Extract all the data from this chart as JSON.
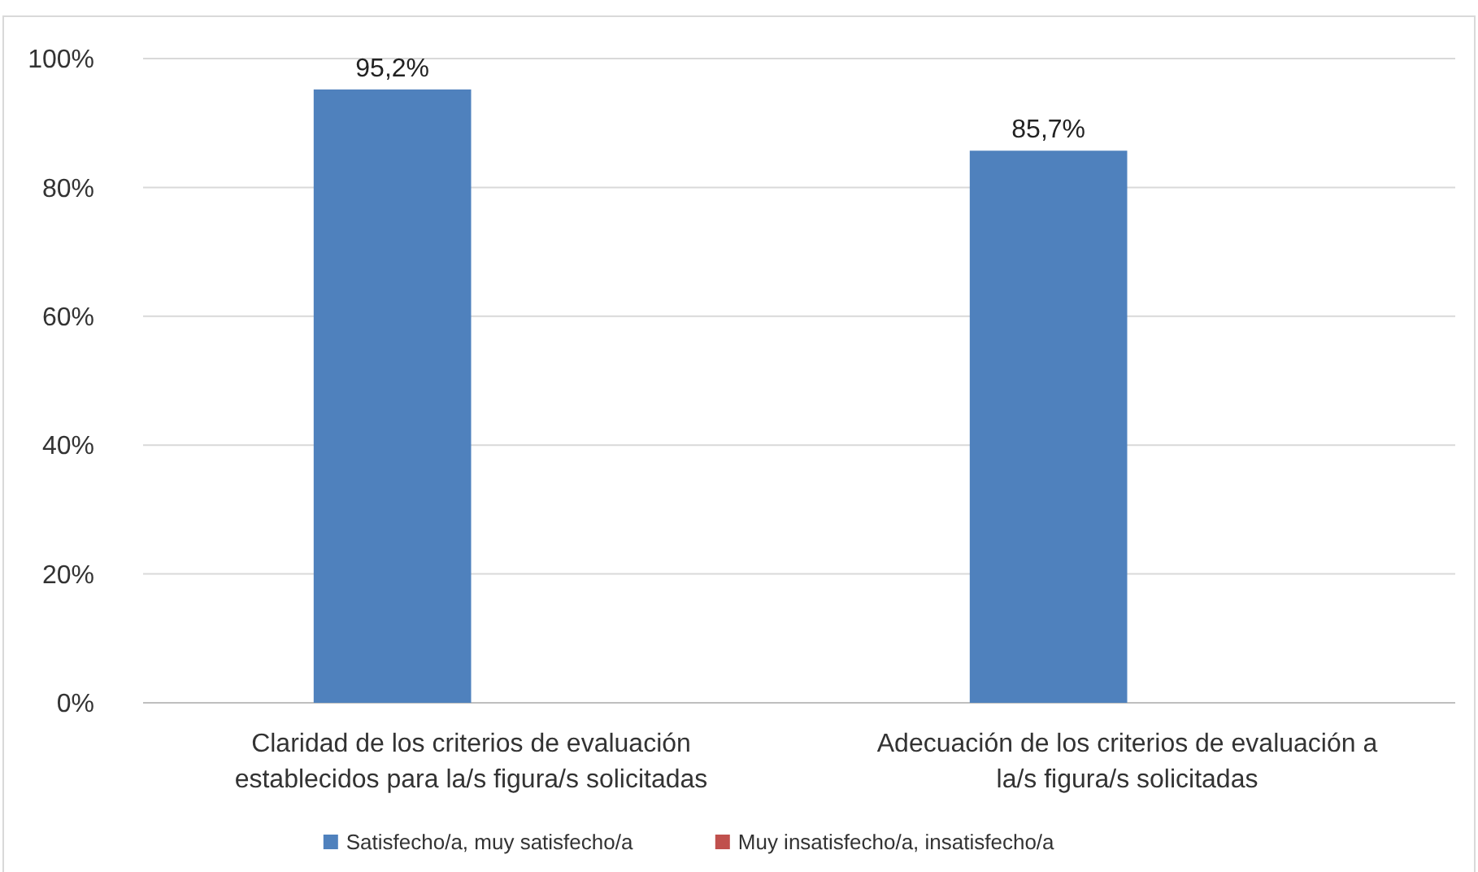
{
  "chart_data": {
    "type": "bar",
    "categories": [
      "Claridad de los criterios de evaluación establecidos para la/s figura/s solicitadas",
      "Adecuación de los criterios de evaluación a la/s figura/s solicitadas"
    ],
    "series": [
      {
        "name": "Satisfecho/a, muy satisfecho/a",
        "color": "#4f81bd",
        "values": [
          95.2,
          85.7
        ],
        "value_labels": [
          "95,2%",
          "85,7%"
        ]
      },
      {
        "name": "Muy insatisfecho/a, insatisfecho/a",
        "color": "#c0504d",
        "values": [
          null,
          null
        ]
      }
    ],
    "ylim": [
      0,
      100
    ],
    "yticks": [
      {
        "value": 0,
        "label": "0%"
      },
      {
        "value": 20,
        "label": "20%"
      },
      {
        "value": 40,
        "label": "40%"
      },
      {
        "value": 60,
        "label": "60%"
      },
      {
        "value": 80,
        "label": "80%"
      },
      {
        "value": 100,
        "label": "100%"
      }
    ],
    "grid": "y",
    "legend": "bottom"
  }
}
